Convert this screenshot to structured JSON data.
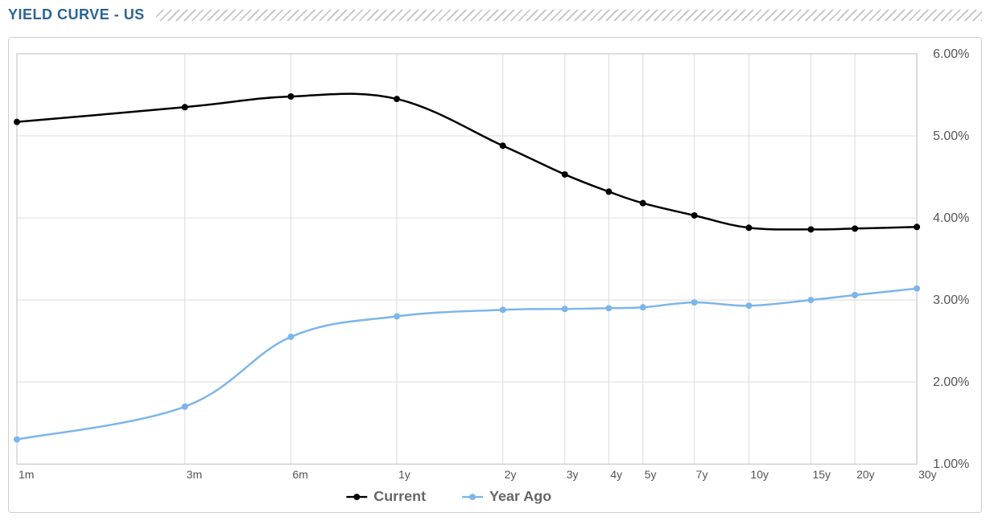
{
  "title": "YIELD CURVE - US",
  "chart": {
    "type": "line",
    "background_color": "#ffffff",
    "grid_color": "#dcdcdc",
    "plot_border_color": "#cfcfcf",
    "ylim": [
      1.0,
      6.0
    ],
    "yticks": [
      1.0,
      2.0,
      3.0,
      4.0,
      5.0,
      6.0
    ],
    "ytick_labels": [
      "1.00%",
      "2.00%",
      "3.00%",
      "4.00%",
      "5.00%",
      "6.00%"
    ],
    "x_categories": [
      "1m",
      "3m",
      "6m",
      "1y",
      "2y",
      "3y",
      "4y",
      "5y",
      "7y",
      "10y",
      "15y",
      "20y",
      "30y"
    ],
    "x_months": [
      1,
      3,
      6,
      12,
      24,
      36,
      48,
      60,
      84,
      120,
      180,
      240,
      360
    ],
    "x_log": true,
    "label_fontsize": 14,
    "ylabel_fontsize": 16,
    "legend_fontsize": 18,
    "line_width": 2.5,
    "marker_radius": 4,
    "series": [
      {
        "name": "Current",
        "color": "#000000",
        "marker_color": "#000000",
        "values": [
          5.17,
          5.35,
          5.48,
          5.45,
          4.88,
          4.53,
          4.32,
          4.18,
          4.03,
          3.88,
          3.86,
          3.87,
          3.89
        ]
      },
      {
        "name": "Year Ago",
        "color": "#7cb5ec",
        "marker_color": "#7cb5ec",
        "values": [
          1.3,
          1.7,
          2.55,
          2.8,
          2.88,
          2.89,
          2.9,
          2.91,
          2.97,
          2.93,
          3.0,
          3.06,
          3.14
        ]
      }
    ],
    "legend": {
      "items": [
        "Current",
        "Year Ago"
      ],
      "colors": [
        "#000000",
        "#7cb5ec"
      ]
    }
  }
}
